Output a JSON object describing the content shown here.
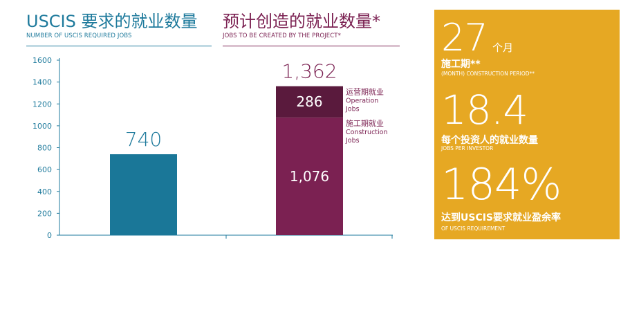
{
  "left_header": {
    "title": "USCIS 要求的就业数量",
    "subtitle": "NUMBER OF USCIS REQUIRED JOBS"
  },
  "right_header": {
    "title": "预计创造的就业数量*",
    "subtitle": "JOBS TO BE CREATED BY THE PROJECT*"
  },
  "chart_data": {
    "type": "bar",
    "ylim": [
      0,
      1600
    ],
    "yticks": [
      0,
      200,
      400,
      600,
      800,
      1000,
      1200,
      1400,
      1600
    ],
    "grid": false,
    "bars": [
      {
        "total_label": "740",
        "segments": [
          {
            "value": 740,
            "color": "#1a7798",
            "label": ""
          }
        ]
      },
      {
        "total_label": "1,362",
        "segments": [
          {
            "value": 1076,
            "color": "#7b2152",
            "label": "1,076",
            "legend": [
              "施工期就业",
              "Construction",
              "Jobs"
            ]
          },
          {
            "value": 286,
            "color": "#5a1a3d",
            "label": "286",
            "legend": [
              "运营期就业",
              "Operation",
              "Jobs"
            ]
          }
        ]
      }
    ]
  },
  "stats": {
    "period": {
      "value": "27",
      "unit": "个月",
      "label": "施工期**",
      "sublabel": "(MONTH) CONSTRUCTION PERIOD**"
    },
    "jobs_per_investor": {
      "value": "18.4",
      "label": "每个投资人的就业数量",
      "sublabel": "JOBS PER INVESTOR"
    },
    "surplus": {
      "value": "184%",
      "label": "达到USCIS要求就业盈余率",
      "sublabel": "OF USCIS REQUIREMENT"
    }
  },
  "colors": {
    "teal": "#1e7a9c",
    "plum": "#7b2152",
    "dark_plum": "#5a1a3d",
    "gold": "#e6a823"
  }
}
